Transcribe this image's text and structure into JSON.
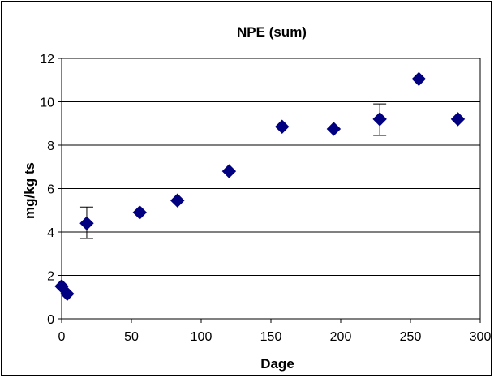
{
  "chart_data": {
    "type": "scatter",
    "title": "NPE (sum)",
    "xlabel": "Dage",
    "ylabel": "mg/kg ts",
    "xlim": [
      0,
      300
    ],
    "ylim": [
      0,
      12
    ],
    "x_ticks": [
      0,
      50,
      100,
      150,
      200,
      250,
      300
    ],
    "y_ticks": [
      0,
      2,
      4,
      6,
      8,
      10,
      12
    ],
    "grid": "horizontal major gridlines",
    "legend": "none",
    "marker": "diamond",
    "marker_color": "#000080",
    "points": [
      {
        "x": 0,
        "y": 1.5
      },
      {
        "x": 4,
        "y": 1.15
      },
      {
        "x": 18,
        "y": 4.4,
        "err_low": 3.7,
        "err_high": 5.15
      },
      {
        "x": 56,
        "y": 4.9
      },
      {
        "x": 83,
        "y": 5.45
      },
      {
        "x": 120,
        "y": 6.8
      },
      {
        "x": 158,
        "y": 8.85
      },
      {
        "x": 195,
        "y": 8.75
      },
      {
        "x": 228,
        "y": 9.2,
        "err_low": 8.45,
        "err_high": 9.9
      },
      {
        "x": 256,
        "y": 11.05
      },
      {
        "x": 284,
        "y": 9.2
      }
    ]
  }
}
